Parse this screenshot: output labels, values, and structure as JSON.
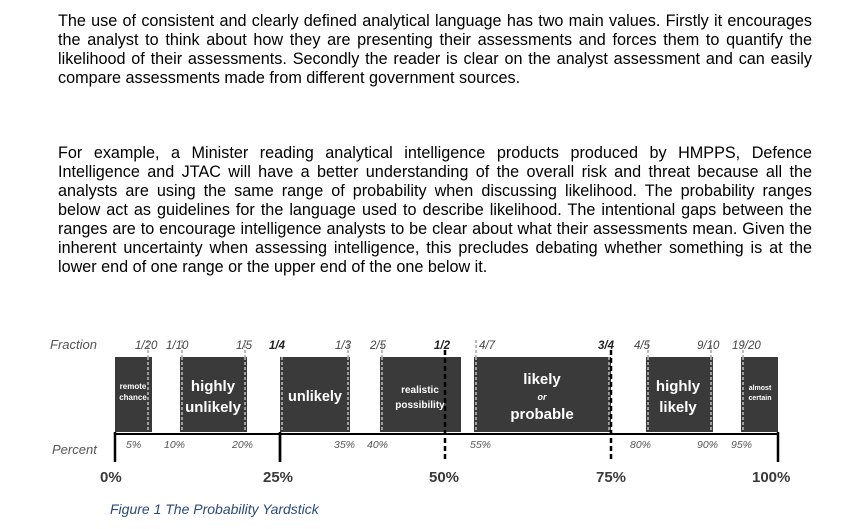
{
  "paragraphs": [
    "The use of consistent and clearly defined analytical language has two main values. Firstly it encourages the analyst to think about how they are presenting their assessments and forces them to quantify the likelihood of their assessments. Secondly the reader is clear on the analyst assessment and can easily compare assessments made from different government sources.",
    "For example, a Minister reading analytical intelligence products produced by HMPPS, Defence Intelligence and JTAC will have a better understanding of the overall risk and threat because all the analysts are using the same range of probability when discussing likelihood. The probability ranges below act as guidelines for the language used to describe likelihood. The intentional gaps between the ranges are to encourage intelligence analysts to be clear about what their assessments mean. Given the inherent uncertainty when assessing intelligence, this precludes debating whether something is at the lower end of one range or the upper end of the one below it."
  ],
  "yardstick": {
    "fraction_label": "Fraction",
    "percent_label": "Percent",
    "fractions": [
      "1/20",
      "1/10",
      "1/5",
      "1/4",
      "1/3",
      "2/5",
      "1/2",
      "4/7",
      "3/4",
      "4/5",
      "9/10",
      "19/20"
    ],
    "percent_ticks": [
      "5%",
      "10%",
      "20%",
      "35%",
      "40%",
      "55%",
      "80%",
      "90%",
      "95%"
    ],
    "major_ticks": [
      "0%",
      "25%",
      "50%",
      "75%",
      "100%"
    ],
    "bands": [
      {
        "line1": "remote",
        "line2": "chance"
      },
      {
        "line1": "highly",
        "line2": "unlikely"
      },
      {
        "line1": "unlikely",
        "line2": ""
      },
      {
        "line1": "realistic",
        "line2": "possibility"
      },
      {
        "line1": "likely",
        "line2": "or",
        "line3": "probable"
      },
      {
        "line1": "highly",
        "line2": "likely"
      },
      {
        "line1": "almost",
        "line2": "certain"
      }
    ],
    "band_color": "#3a3a3a"
  },
  "caption": "Figure 1 The Probability Yardstick"
}
